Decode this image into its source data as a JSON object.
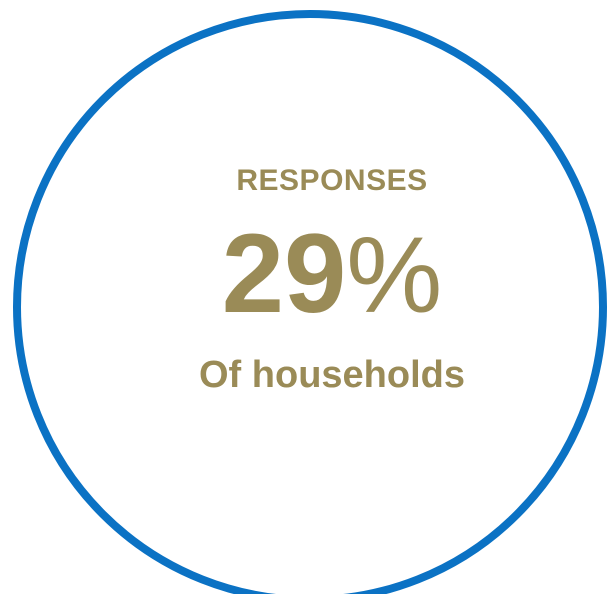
{
  "stat": {
    "heading": "RESPONSES",
    "value_number": "29",
    "value_symbol": "%",
    "caption": "Of households"
  },
  "colors": {
    "ring": "#0B72C4",
    "text": "#9A8B57",
    "background": "#FFFFFF"
  }
}
